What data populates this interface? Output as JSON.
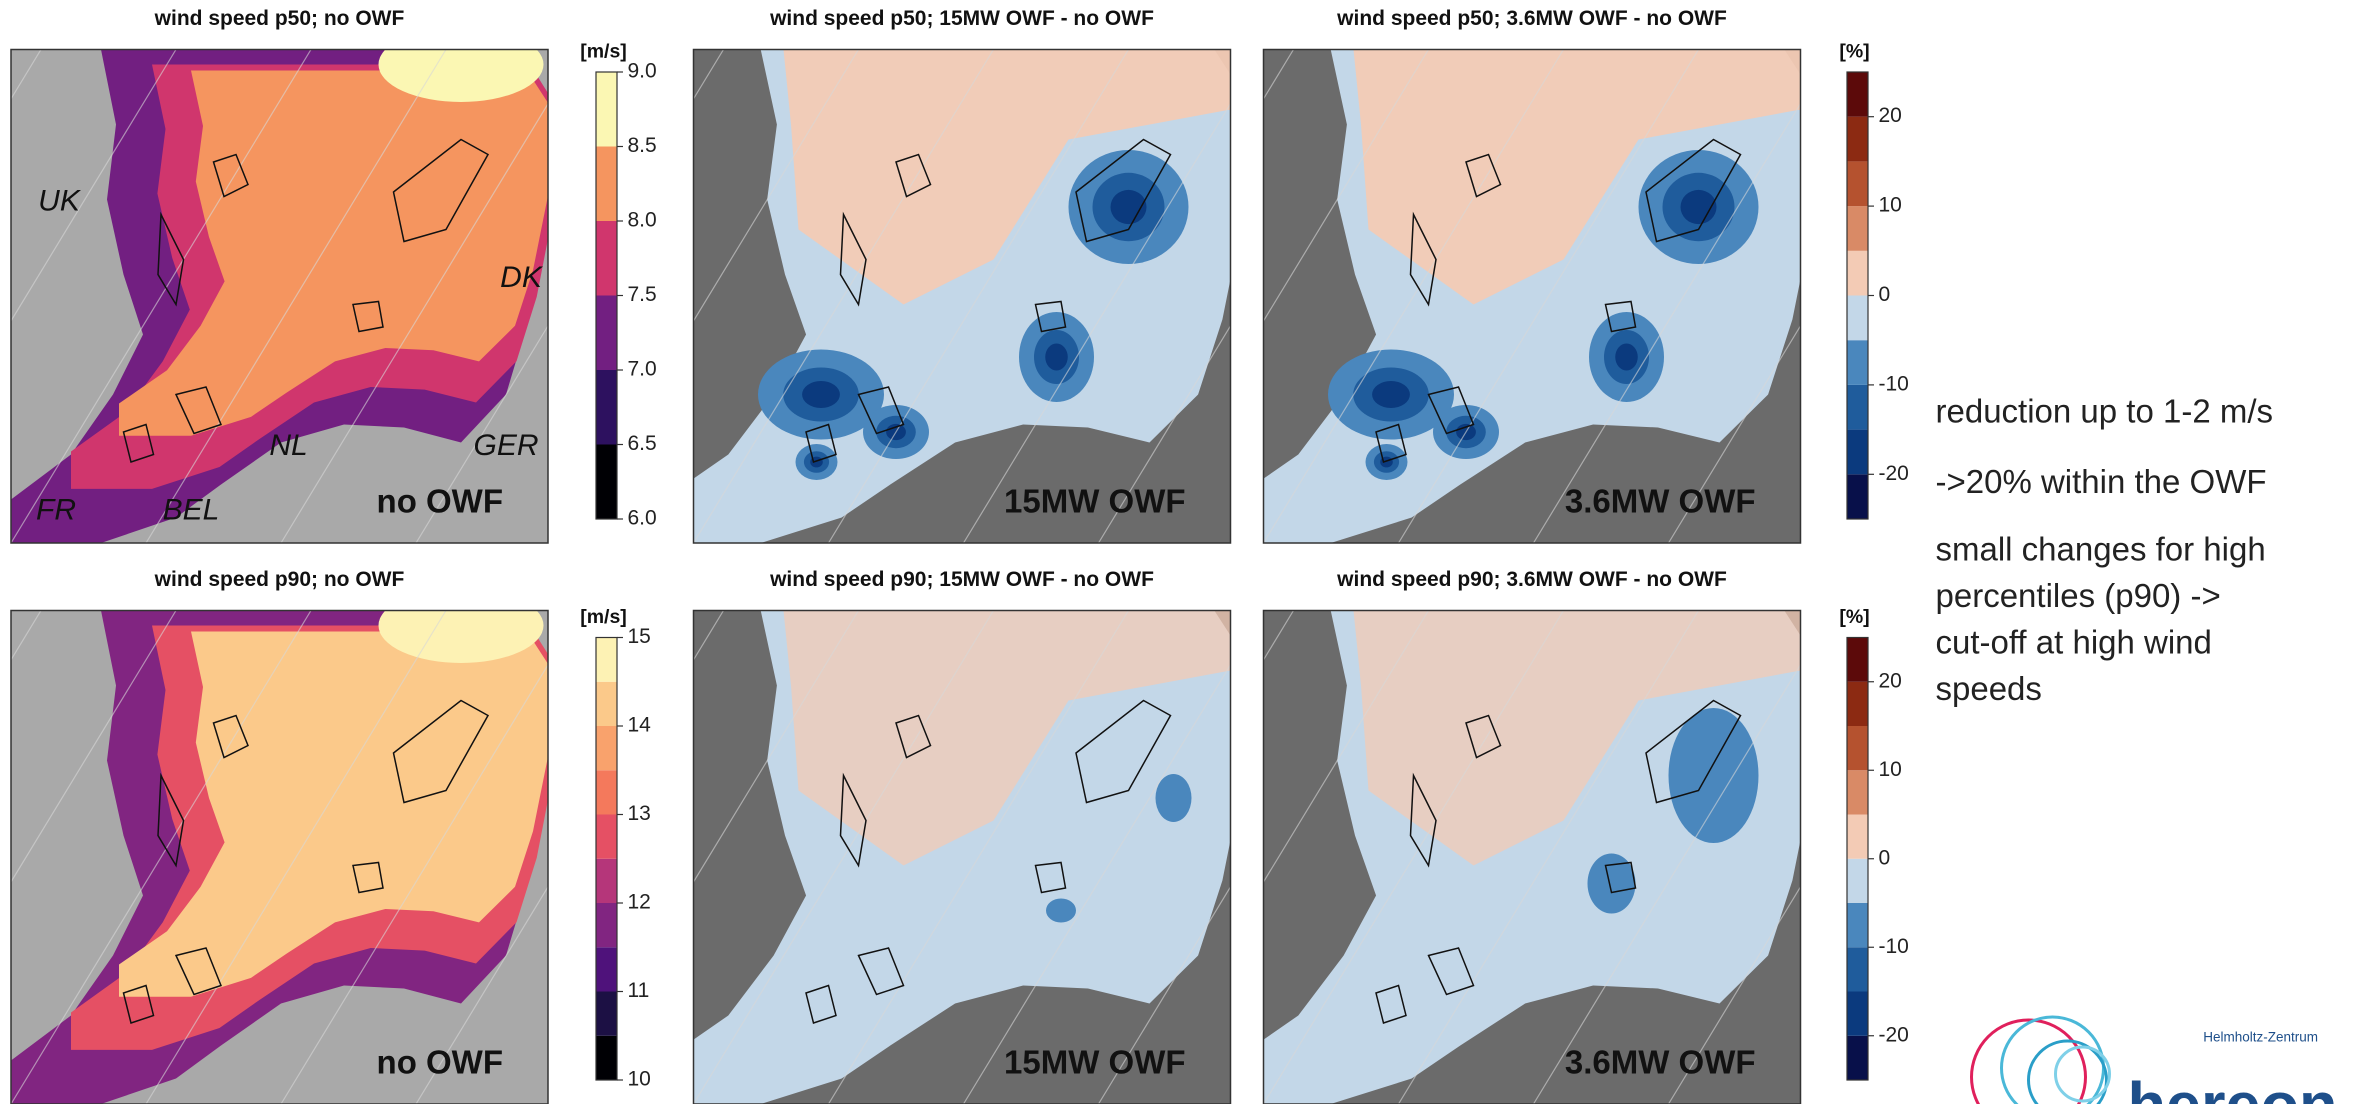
{
  "panels": [
    {
      "title": "wind speed p50; no OWF",
      "label": "no OWF",
      "countries": [
        "UK",
        "DK",
        "NL",
        "GER",
        "FR",
        "BEL"
      ]
    },
    {
      "title": "wind speed p50; 15MW OWF - no OWF",
      "label": "15MW OWF"
    },
    {
      "title": "wind speed p50; 3.6MW OWF - no OWF",
      "label": "3.6MW OWF"
    },
    {
      "title": "wind speed p90; no OWF",
      "label": "no OWF"
    },
    {
      "title": "wind speed p90; 15MW OWF - no OWF",
      "label": "15MW OWF"
    },
    {
      "title": "wind speed p90; 3.6MW OWF - no OWF",
      "label": "3.6MW OWF"
    }
  ],
  "colorbars": [
    {
      "unit": "[m/s]",
      "lim": [
        6,
        9
      ],
      "ticks": [
        {
          "value": 6,
          "label": "6.0"
        },
        {
          "value": 6.5,
          "label": "6.5"
        },
        {
          "value": 7,
          "label": "7.0"
        },
        {
          "value": 7.5,
          "label": "7.5"
        },
        {
          "value": 8,
          "label": "8.0"
        },
        {
          "value": 8.5,
          "label": "8.5"
        },
        {
          "value": 9,
          "label": "9.0"
        }
      ],
      "colors": [
        "#000004",
        "#2d115f",
        "#721f81",
        "#d0366d",
        "#f5955f",
        "#fbf7b3"
      ]
    },
    {
      "unit": "[m/s]",
      "lim": [
        10,
        15
      ],
      "ticks": [
        10,
        11,
        12,
        13,
        14,
        15
      ],
      "colors": [
        "#000004",
        "#1c1044",
        "#4f127b",
        "#812581",
        "#b5367a",
        "#e55064",
        "#f4795c",
        "#f9a26c",
        "#fbc98a",
        "#fdf2b4"
      ]
    },
    {
      "unit": "[%]",
      "lim": [
        -25,
        25
      ],
      "ticks": [
        -20,
        -10,
        0,
        10,
        20
      ],
      "colors": [
        "#08104a",
        "#0b3a7e",
        "#1f5c9c",
        "#4a87bd",
        "#c3d7e8",
        "#f3cbb5",
        "#d98a66",
        "#b5522f",
        "#8c2a12",
        "#5c0a0a"
      ]
    },
    {
      "unit": "[%]",
      "lim": [
        -25,
        25
      ],
      "ticks": [
        -20,
        -10,
        0,
        10,
        20
      ],
      "colors": [
        "#08104a",
        "#0b3a7e",
        "#1f5c9c",
        "#4a87bd",
        "#c3d7e8",
        "#f3cbb5",
        "#d98a66",
        "#b5522f",
        "#8c2a12",
        "#5c0a0a"
      ]
    }
  ],
  "notes": [
    [
      "reduction up to 1-2 m/s"
    ],
    [
      "->20% within the OWF"
    ],
    [
      "small changes for high",
      "percentiles (p90) ->",
      "cut-off at high wind",
      "speeds"
    ]
  ],
  "logo": {
    "subtitle": "Helmholtz-Zentrum",
    "name": "hereon"
  }
}
